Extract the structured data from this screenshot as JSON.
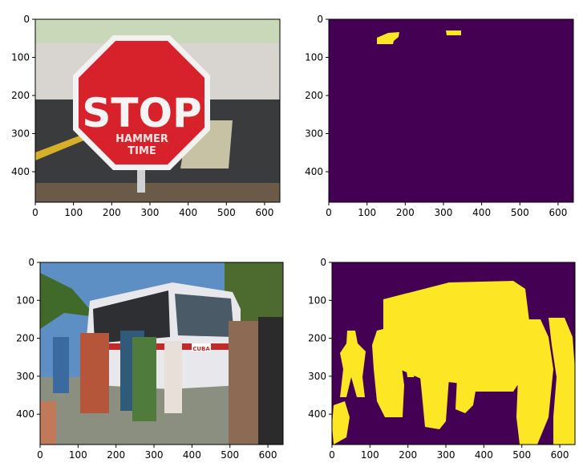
{
  "chart_data": [
    {
      "type": "image",
      "content": "photo of a red STOP sign on a street corner",
      "sign_text": [
        "STOP",
        "HAMMER",
        "TIME"
      ],
      "xlim": [
        0,
        640
      ],
      "ylim": [
        480,
        0
      ],
      "xticks": [
        0,
        100,
        200,
        300,
        400,
        500,
        600
      ],
      "yticks": [
        0,
        100,
        200,
        300,
        400
      ],
      "xlabel": "",
      "ylabel": "",
      "title": ""
    },
    {
      "type": "heatmap",
      "content": "binary segmentation mask",
      "colors": {
        "background": "#440154",
        "foreground": "#fde725"
      },
      "xlim": [
        0,
        640
      ],
      "ylim": [
        480,
        0
      ],
      "xticks": [
        0,
        100,
        200,
        300,
        400,
        500,
        600
      ],
      "yticks": [
        0,
        100,
        200,
        300,
        400
      ],
      "xlabel": "",
      "ylabel": "",
      "title": ""
    },
    {
      "type": "image",
      "content": "photo of tourists standing next to a parked bus",
      "bus_sign_text": "CUBA",
      "xlim": [
        0,
        640
      ],
      "ylim": [
        480,
        0
      ],
      "xticks": [
        0,
        100,
        200,
        300,
        400,
        500,
        600
      ],
      "yticks": [
        0,
        100,
        200,
        300,
        400
      ],
      "xlabel": "",
      "ylabel": "",
      "title": ""
    },
    {
      "type": "heatmap",
      "content": "binary segmentation mask",
      "colors": {
        "background": "#440154",
        "foreground": "#fde725"
      },
      "xlim": [
        0,
        640
      ],
      "ylim": [
        480,
        0
      ],
      "xticks": [
        0,
        100,
        200,
        300,
        400,
        500,
        600
      ],
      "yticks": [
        0,
        100,
        200,
        300,
        400
      ],
      "xlabel": "",
      "ylabel": "",
      "title": ""
    }
  ]
}
